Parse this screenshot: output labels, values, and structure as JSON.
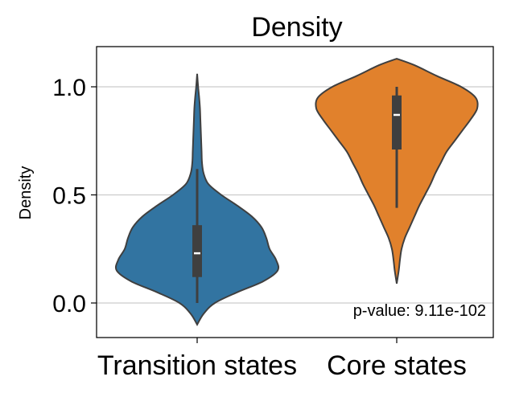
{
  "chart_data": {
    "type": "violin",
    "title": "Density",
    "xlabel": "",
    "ylabel": "Density",
    "ylim": [
      -0.16,
      1.2
    ],
    "yticks": [
      "0.0",
      "0.5",
      "1.0"
    ],
    "ytick_values": [
      0.0,
      0.5,
      1.0
    ],
    "grid": "y",
    "categories": [
      "Transition states",
      "Core states"
    ],
    "colors": [
      "#3274a1",
      "#e1812c"
    ],
    "violins": [
      {
        "category": "Transition states",
        "color": "#3274a1",
        "min": 0.0,
        "q1": 0.12,
        "median": 0.23,
        "q3": 0.36,
        "whisker_high": 0.62,
        "max": 1.0,
        "density_y": [
          -0.1,
          -0.05,
          0.0,
          0.05,
          0.1,
          0.15,
          0.2,
          0.25,
          0.3,
          0.35,
          0.4,
          0.45,
          0.5,
          0.55,
          0.6,
          0.65,
          0.7,
          0.75,
          0.8,
          0.85,
          0.9,
          0.95,
          1.0,
          1.06
        ],
        "density_w": [
          0,
          0.08,
          0.22,
          0.5,
          0.82,
          1.0,
          0.98,
          0.9,
          0.86,
          0.8,
          0.68,
          0.5,
          0.3,
          0.14,
          0.08,
          0.06,
          0.055,
          0.05,
          0.045,
          0.04,
          0.035,
          0.025,
          0.012,
          0
        ]
      },
      {
        "category": "Core states",
        "color": "#e1812c",
        "min": 0.44,
        "q1": 0.71,
        "median": 0.87,
        "q3": 0.96,
        "whisker_high": 1.0,
        "max": 1.0,
        "density_y": [
          0.09,
          0.15,
          0.2,
          0.25,
          0.3,
          0.35,
          0.4,
          0.45,
          0.5,
          0.55,
          0.6,
          0.65,
          0.7,
          0.75,
          0.8,
          0.85,
          0.9,
          0.95,
          1.0,
          1.05,
          1.1,
          1.13
        ],
        "density_w": [
          0,
          0.025,
          0.04,
          0.06,
          0.1,
          0.16,
          0.22,
          0.28,
          0.35,
          0.42,
          0.48,
          0.55,
          0.62,
          0.72,
          0.82,
          0.92,
          1.0,
          0.98,
          0.8,
          0.5,
          0.22,
          0
        ]
      }
    ],
    "annotation": "p-value: 9.11e-102"
  }
}
